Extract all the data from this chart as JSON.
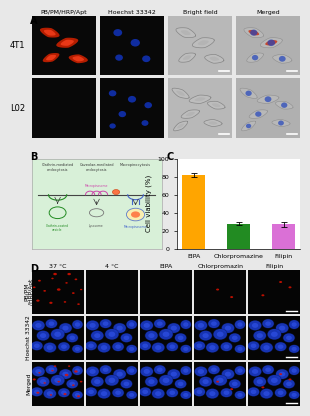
{
  "panel_A_label": "A",
  "panel_B_label": "B",
  "panel_C_label": "C",
  "panel_D_label": "D",
  "col_headers_A": [
    "PB/PM/HRP/Apt",
    "Hoechst 33342",
    "Bright field",
    "Merged"
  ],
  "row_labels_A": [
    "4T1",
    "L02"
  ],
  "bar_labels": [
    "EIPA",
    "Chlorpromazine",
    "Filipin"
  ],
  "bar_values": [
    82,
    28,
    27
  ],
  "bar_errors": [
    2.5,
    2,
    3
  ],
  "bar_colors": [
    "#FFA500",
    "#228B22",
    "#DA70D6"
  ],
  "ylabel_C": "Cell viability (%)",
  "ylim_C": [
    0,
    100
  ],
  "yticks_C": [
    0,
    20,
    40,
    60,
    80,
    100
  ],
  "col_headers_D": [
    "37 °C",
    "4 °C",
    "EIPA",
    "Chlorpromazin",
    "Filipin"
  ],
  "row_labels_D": [
    "PB/PM\n/HRP/Apt",
    "Hoechst 33342",
    "Merged"
  ],
  "bg_color_B": "#d8f0d8",
  "label_fontsize": 6,
  "bar_fontsize": 5.5
}
